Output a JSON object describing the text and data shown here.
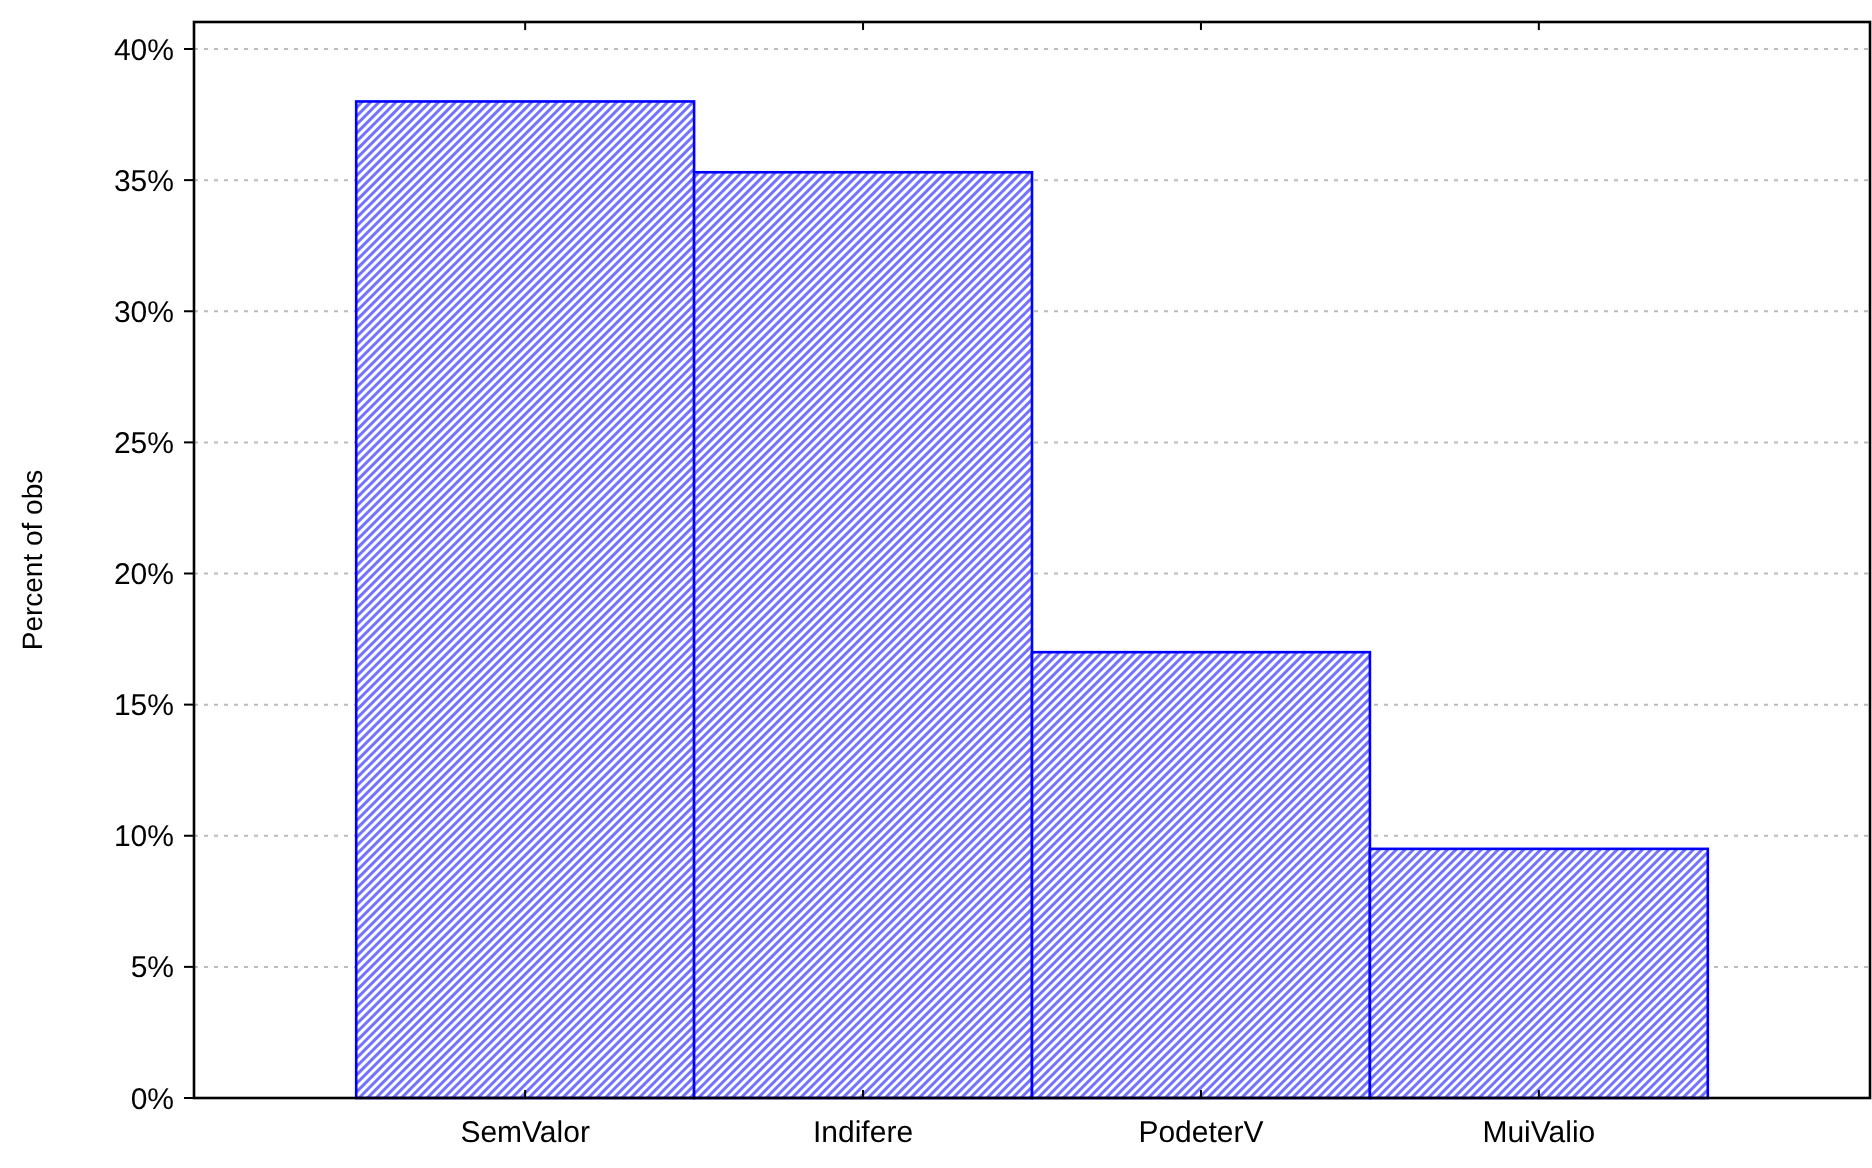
{
  "chart_data": {
    "type": "bar",
    "ylabel": "Percent of obs",
    "categories": [
      "SemValor",
      "Indifere",
      "PodeterV",
      "MuiValio"
    ],
    "values": [
      38.0,
      35.3,
      17.0,
      9.5
    ],
    "color": "#0000ff",
    "ylim": [
      0,
      40
    ],
    "yticks": [
      {
        "value": 0,
        "label": "0%"
      },
      {
        "value": 5,
        "label": "5%"
      },
      {
        "value": 10,
        "label": "10%"
      },
      {
        "value": 15,
        "label": "15%"
      },
      {
        "value": 20,
        "label": "20%"
      },
      {
        "value": 25,
        "label": "25%"
      },
      {
        "value": 30,
        "label": "30%"
      },
      {
        "value": 35,
        "label": "35%"
      },
      {
        "value": 40,
        "label": "40%"
      }
    ],
    "grid": "y"
  }
}
